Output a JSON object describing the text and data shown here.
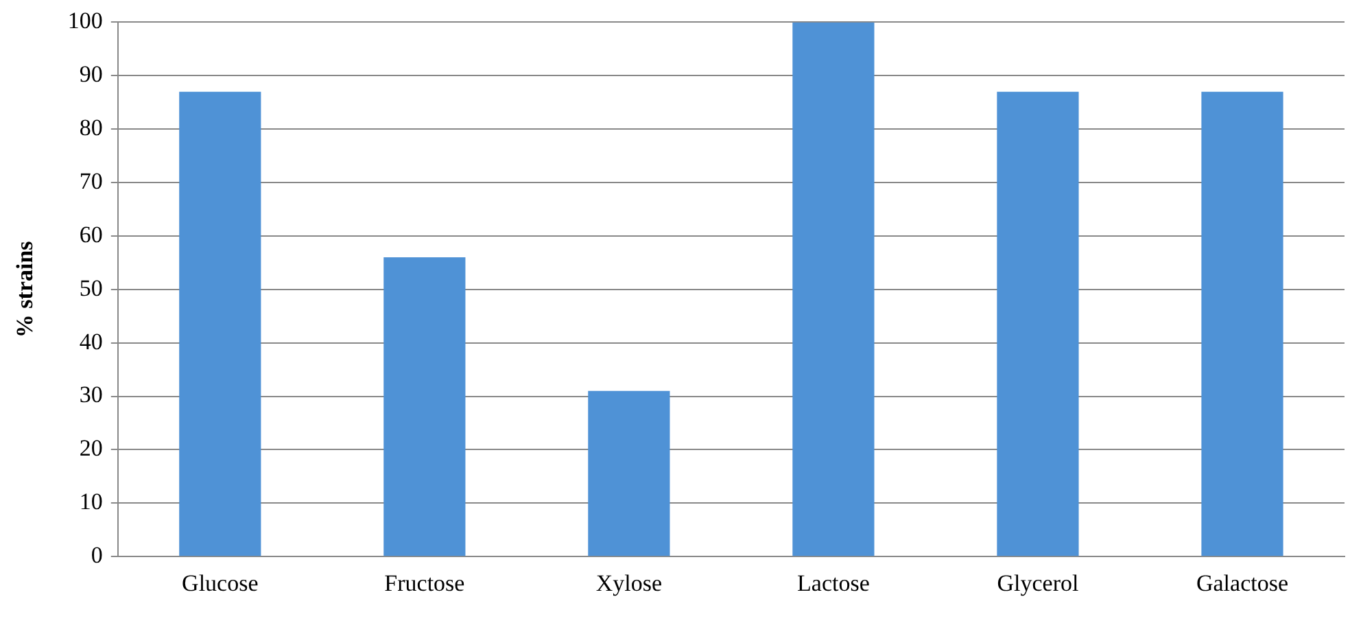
{
  "chart_data": {
    "type": "bar",
    "ylabel": "% strains",
    "categories": [
      "Glucose",
      "Fructose",
      "Xylose",
      "Lactose",
      "Glycerol",
      "Galactose"
    ],
    "values": [
      87,
      56,
      31,
      100,
      87,
      87
    ],
    "color": "#4f92d6",
    "ylim": [
      0,
      100
    ],
    "yticks": [
      0,
      10,
      20,
      30,
      40,
      50,
      60,
      70,
      80,
      90,
      100
    ],
    "grid": "y"
  }
}
